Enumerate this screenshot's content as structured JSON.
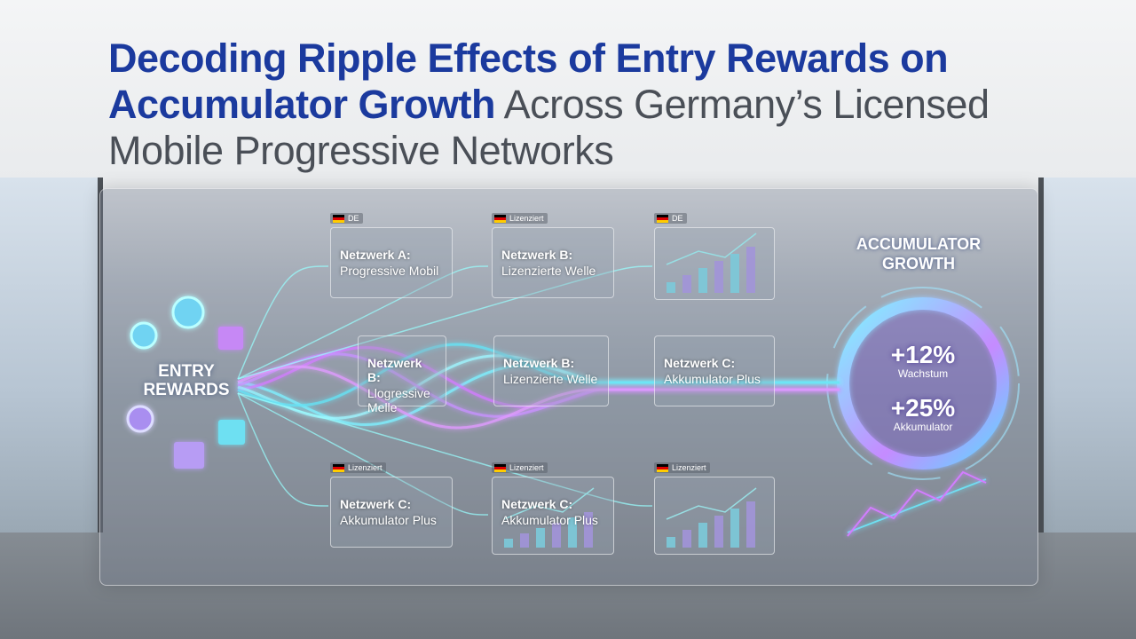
{
  "header": {
    "title_bold": "Decoding Ripple Effects of Entry Rewards on Accumulator Growth",
    "title_light": "Across Germany’s Licensed Mobile Progressive Networks"
  },
  "entry": {
    "label": "ENTRY REWARDS"
  },
  "cards": [
    {
      "tag": "DE",
      "title": "Netzwerk A:",
      "subtitle": "Progressive Mobil"
    },
    {
      "tag": "Lizenziert",
      "title": "Netzwerk B:",
      "subtitle": "Lizenzierte Welle"
    },
    {
      "tag": "DE"
    },
    {
      "title": "Netzwerk B:",
      "subtitle": "Llogressive Melle"
    },
    {
      "title": "Netzwerk B:",
      "subtitle": "Lizenzierte Welle"
    },
    {
      "title": "Netzwerk C:",
      "subtitle": "Akkumulator Plus"
    },
    {
      "tag": "Lizenziert",
      "title": "Netzwerk C:",
      "subtitle": "Akkumulator Plus"
    },
    {
      "tag": "Lizenziert",
      "title": "Netzwerk C:",
      "subtitle": "Akkumulator Plus"
    },
    {
      "tag": "Lizenziert"
    }
  ],
  "growth": {
    "title": "ACCUMULATOR GROWTH",
    "stats": [
      {
        "value": "+12%",
        "label": "Wachstum"
      },
      {
        "value": "+25%",
        "label": "Akkumulator"
      }
    ]
  }
}
